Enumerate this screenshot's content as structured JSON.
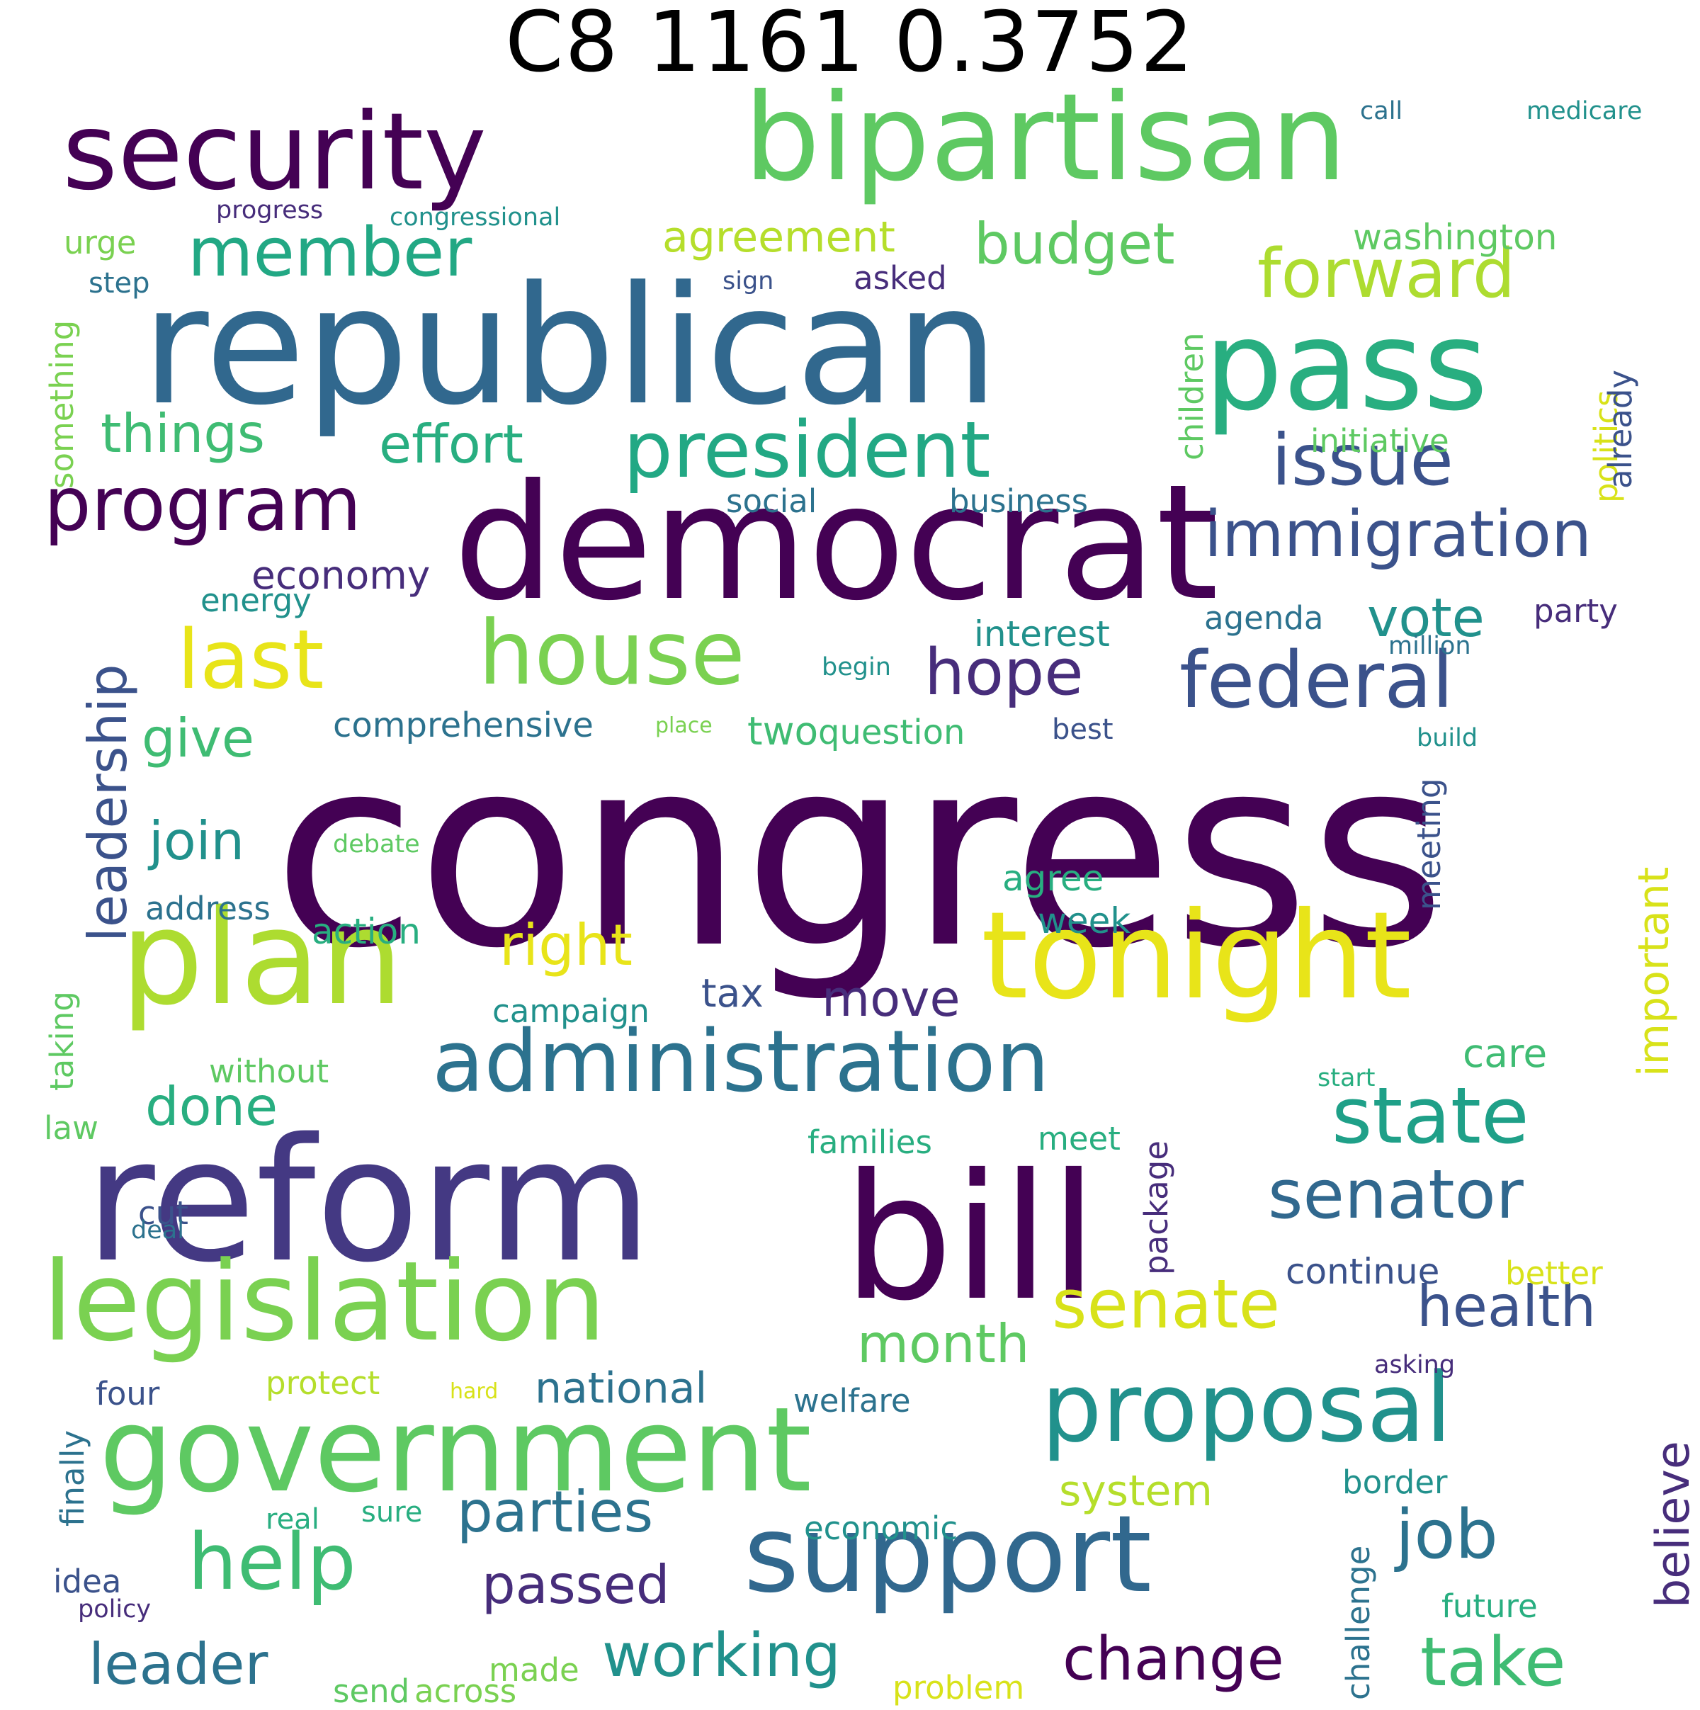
{
  "title": "C8 1161 0.3752",
  "palette": {
    "c1": "#440154",
    "c2": "#472d7b",
    "c3": "#3b528b",
    "c4": "#2c728e",
    "c5": "#21918c",
    "c6": "#28ae80",
    "c7": "#5ec962",
    "c8": "#addc30",
    "c9": "#e8e419"
  },
  "words": [
    {
      "text": "congress",
      "color": "#440154",
      "orientation": "horizontal"
    },
    {
      "text": "republican",
      "color": "#31688e",
      "orientation": "horizontal"
    },
    {
      "text": "democrat",
      "color": "#440154",
      "orientation": "horizontal"
    },
    {
      "text": "bipartisan",
      "color": "#5ec962",
      "orientation": "horizontal"
    },
    {
      "text": "security",
      "color": "#440154",
      "orientation": "horizontal"
    },
    {
      "text": "pass",
      "color": "#28ae80",
      "orientation": "horizontal"
    },
    {
      "text": "reform",
      "color": "#443983",
      "orientation": "horizontal"
    },
    {
      "text": "bill",
      "color": "#440154",
      "orientation": "horizontal"
    },
    {
      "text": "plan",
      "color": "#addc30",
      "orientation": "horizontal"
    },
    {
      "text": "tonight",
      "color": "#e8e419",
      "orientation": "horizontal"
    },
    {
      "text": "government",
      "color": "#5ec962",
      "orientation": "horizontal"
    },
    {
      "text": "support",
      "color": "#31688e",
      "orientation": "horizontal"
    },
    {
      "text": "legislation",
      "color": "#7ad151",
      "orientation": "horizontal"
    },
    {
      "text": "administration",
      "color": "#2c728e",
      "orientation": "horizontal"
    },
    {
      "text": "proposal",
      "color": "#21918c",
      "orientation": "horizontal"
    },
    {
      "text": "house",
      "color": "#7ad151",
      "orientation": "horizontal"
    },
    {
      "text": "last",
      "color": "#e8e419",
      "orientation": "horizontal"
    },
    {
      "text": "president",
      "color": "#22a884",
      "orientation": "horizontal"
    },
    {
      "text": "program",
      "color": "#440154",
      "orientation": "horizontal"
    },
    {
      "text": "member",
      "color": "#22a884",
      "orientation": "horizontal"
    },
    {
      "text": "forward",
      "color": "#addc30",
      "orientation": "horizontal"
    },
    {
      "text": "issue",
      "color": "#3b528b",
      "orientation": "horizontal"
    },
    {
      "text": "federal",
      "color": "#3b528b",
      "orientation": "horizontal"
    },
    {
      "text": "state",
      "color": "#1fa088",
      "orientation": "horizontal"
    },
    {
      "text": "help",
      "color": "#3fbc73",
      "orientation": "horizontal"
    },
    {
      "text": "senator",
      "color": "#31688e",
      "orientation": "horizontal"
    },
    {
      "text": "senate",
      "color": "#d8e219",
      "orientation": "horizontal"
    },
    {
      "text": "job",
      "color": "#2c728e",
      "orientation": "horizontal"
    },
    {
      "text": "take",
      "color": "#3fbc73",
      "orientation": "horizontal"
    },
    {
      "text": "immigration",
      "color": "#3b528b",
      "orientation": "horizontal"
    },
    {
      "text": "budget",
      "color": "#5ec962",
      "orientation": "horizontal"
    },
    {
      "text": "hope",
      "color": "#472d7b",
      "orientation": "horizontal"
    },
    {
      "text": "things",
      "color": "#3fbc73",
      "orientation": "horizontal"
    },
    {
      "text": "effort",
      "color": "#28ae80",
      "orientation": "horizontal"
    },
    {
      "text": "right",
      "color": "#e8e419",
      "orientation": "horizontal"
    },
    {
      "text": "parties",
      "color": "#2c728e",
      "orientation": "horizontal"
    },
    {
      "text": "health",
      "color": "#3b528b",
      "orientation": "horizontal"
    },
    {
      "text": "month",
      "color": "#5ec962",
      "orientation": "horizontal"
    },
    {
      "text": "change",
      "color": "#440154",
      "orientation": "horizontal"
    },
    {
      "text": "working",
      "color": "#21918c",
      "orientation": "horizontal"
    },
    {
      "text": "passed",
      "color": "#472d7b",
      "orientation": "horizontal"
    },
    {
      "text": "leader",
      "color": "#2c728e",
      "orientation": "horizontal"
    },
    {
      "text": "move",
      "color": "#472d7b",
      "orientation": "horizontal"
    },
    {
      "text": "done",
      "color": "#28ae80",
      "orientation": "horizontal"
    },
    {
      "text": "give",
      "color": "#3fbc73",
      "orientation": "horizontal"
    },
    {
      "text": "join",
      "color": "#21918c",
      "orientation": "horizontal"
    },
    {
      "text": "vote",
      "color": "#21918c",
      "orientation": "horizontal"
    },
    {
      "text": "agreement",
      "color": "#b5de2b",
      "orientation": "horizontal"
    },
    {
      "text": "economy",
      "color": "#472d7b",
      "orientation": "horizontal"
    },
    {
      "text": "national",
      "color": "#2c728e",
      "orientation": "horizontal"
    },
    {
      "text": "system",
      "color": "#b5de2b",
      "orientation": "horizontal"
    },
    {
      "text": "tax",
      "color": "#3b528b",
      "orientation": "horizontal"
    },
    {
      "text": "two",
      "color": "#3fbc73",
      "orientation": "horizontal"
    },
    {
      "text": "question",
      "color": "#3fbc73",
      "orientation": "horizontal"
    },
    {
      "text": "comprehensive",
      "color": "#2c728e",
      "orientation": "horizontal"
    },
    {
      "text": "washington",
      "color": "#5ec962",
      "orientation": "horizontal"
    },
    {
      "text": "care",
      "color": "#3fbc73",
      "orientation": "horizontal"
    },
    {
      "text": "action",
      "color": "#28ae80",
      "orientation": "horizontal"
    },
    {
      "text": "agenda",
      "color": "#2c728e",
      "orientation": "horizontal"
    },
    {
      "text": "party",
      "color": "#472d7b",
      "orientation": "horizontal"
    },
    {
      "text": "social",
      "color": "#2c728e",
      "orientation": "horizontal"
    },
    {
      "text": "business",
      "color": "#2c728e",
      "orientation": "horizontal"
    },
    {
      "text": "interest",
      "color": "#21918c",
      "orientation": "horizontal"
    },
    {
      "text": "agree",
      "color": "#28ae80",
      "orientation": "horizontal"
    },
    {
      "text": "week",
      "color": "#21918c",
      "orientation": "horizontal"
    },
    {
      "text": "address",
      "color": "#2c728e",
      "orientation": "horizontal"
    },
    {
      "text": "campaign",
      "color": "#21918c",
      "orientation": "horizontal"
    },
    {
      "text": "continue",
      "color": "#3b528b",
      "orientation": "horizontal"
    },
    {
      "text": "better",
      "color": "#d8e219",
      "orientation": "horizontal"
    },
    {
      "text": "protect",
      "color": "#b5de2b",
      "orientation": "horizontal"
    },
    {
      "text": "economic",
      "color": "#21918c",
      "orientation": "horizontal"
    },
    {
      "text": "welfare",
      "color": "#2c728e",
      "orientation": "horizontal"
    },
    {
      "text": "families",
      "color": "#28ae80",
      "orientation": "horizontal"
    },
    {
      "text": "meet",
      "color": "#28ae80",
      "orientation": "horizontal"
    },
    {
      "text": "border",
      "color": "#21918c",
      "orientation": "horizontal"
    },
    {
      "text": "future",
      "color": "#28ae80",
      "orientation": "horizontal"
    },
    {
      "text": "without",
      "color": "#5ec962",
      "orientation": "horizontal"
    },
    {
      "text": "four",
      "color": "#3b528b",
      "orientation": "horizontal"
    },
    {
      "text": "law",
      "color": "#5ec962",
      "orientation": "horizontal"
    },
    {
      "text": "cut",
      "color": "#3b528b",
      "orientation": "horizontal"
    },
    {
      "text": "deal",
      "color": "#2c728e",
      "orientation": "horizontal"
    },
    {
      "text": "energy",
      "color": "#21918c",
      "orientation": "horizontal"
    },
    {
      "text": "asked",
      "color": "#472d7b",
      "orientation": "horizontal"
    },
    {
      "text": "sign",
      "color": "#3b528b",
      "orientation": "horizontal"
    },
    {
      "text": "progress",
      "color": "#472d7b",
      "orientation": "horizontal"
    },
    {
      "text": "congressional",
      "color": "#21918c",
      "orientation": "horizontal"
    },
    {
      "text": "urge",
      "color": "#7ad151",
      "orientation": "horizontal"
    },
    {
      "text": "step",
      "color": "#2c728e",
      "orientation": "horizontal"
    },
    {
      "text": "call",
      "color": "#2c728e",
      "orientation": "horizontal"
    },
    {
      "text": "medicare",
      "color": "#21918c",
      "orientation": "horizontal"
    },
    {
      "text": "initiative",
      "color": "#5ec962",
      "orientation": "horizontal"
    },
    {
      "text": "million",
      "color": "#2c728e",
      "orientation": "horizontal"
    },
    {
      "text": "begin",
      "color": "#21918c",
      "orientation": "horizontal"
    },
    {
      "text": "place",
      "color": "#7ad151",
      "orientation": "horizontal"
    },
    {
      "text": "best",
      "color": "#3b528b",
      "orientation": "horizontal"
    },
    {
      "text": "build",
      "color": "#21918c",
      "orientation": "horizontal"
    },
    {
      "text": "debate",
      "color": "#5ec962",
      "orientation": "horizontal"
    },
    {
      "text": "start",
      "color": "#28ae80",
      "orientation": "horizontal"
    },
    {
      "text": "asking",
      "color": "#472d7b",
      "orientation": "horizontal"
    },
    {
      "text": "hard",
      "color": "#d8e219",
      "orientation": "horizontal"
    },
    {
      "text": "real",
      "color": "#28ae80",
      "orientation": "horizontal"
    },
    {
      "text": "sure",
      "color": "#28ae80",
      "orientation": "horizontal"
    },
    {
      "text": "idea",
      "color": "#3b528b",
      "orientation": "horizontal"
    },
    {
      "text": "policy",
      "color": "#472d7b",
      "orientation": "horizontal"
    },
    {
      "text": "made",
      "color": "#7ad151",
      "orientation": "horizontal"
    },
    {
      "text": "send",
      "color": "#5ec962",
      "orientation": "horizontal"
    },
    {
      "text": "across",
      "color": "#7ad151",
      "orientation": "horizontal"
    },
    {
      "text": "problem",
      "color": "#d8e219",
      "orientation": "horizontal"
    },
    {
      "text": "leadership",
      "color": "#3b528b",
      "orientation": "vertical"
    },
    {
      "text": "important",
      "color": "#d8e219",
      "orientation": "vertical"
    },
    {
      "text": "believe",
      "color": "#472d7b",
      "orientation": "vertical"
    },
    {
      "text": "something",
      "color": "#7ad151",
      "orientation": "vertical"
    },
    {
      "text": "children",
      "color": "#5ec962",
      "orientation": "vertical"
    },
    {
      "text": "politics",
      "color": "#d8e219",
      "orientation": "vertical"
    },
    {
      "text": "already",
      "color": "#3b528b",
      "orientation": "vertical"
    },
    {
      "text": "meeting",
      "color": "#3b528b",
      "orientation": "vertical"
    },
    {
      "text": "taking",
      "color": "#5ec962",
      "orientation": "vertical"
    },
    {
      "text": "package",
      "color": "#472d7b",
      "orientation": "vertical"
    },
    {
      "text": "finally",
      "color": "#2c728e",
      "orientation": "vertical"
    },
    {
      "text": "challenge",
      "color": "#2c728e",
      "orientation": "vertical"
    }
  ]
}
